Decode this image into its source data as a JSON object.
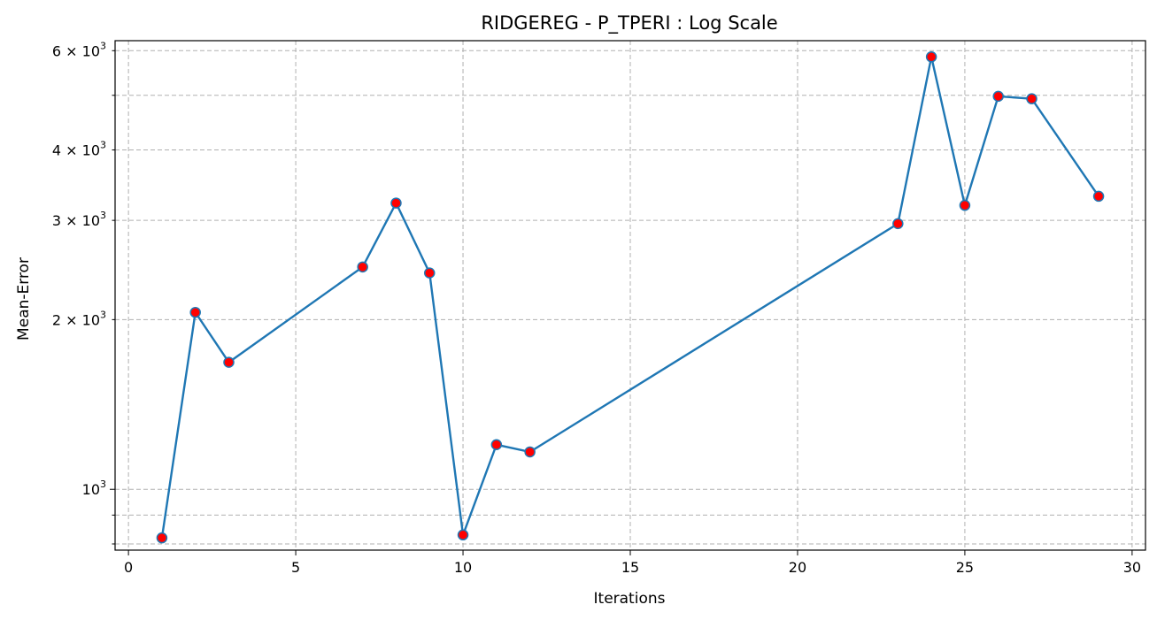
{
  "chart_data": {
    "type": "line",
    "title": "RIDGEREG - P_TPERI : Log Scale",
    "xlabel": "Iterations",
    "ylabel": "Mean-Error",
    "yscale": "log",
    "xlim": [
      -0.4,
      30.4
    ],
    "ylim": [
      780,
      6250
    ],
    "xticks": [
      0,
      5,
      10,
      15,
      20,
      25,
      30
    ],
    "xtick_labels": [
      "0",
      "5",
      "10",
      "15",
      "20",
      "25",
      "30"
    ],
    "yticks_major": [
      1000
    ],
    "yticks_minor": [
      800,
      900,
      2000,
      3000,
      4000,
      5000,
      6000
    ],
    "ytick_labels": [
      {
        "value": 1000,
        "base": "10",
        "exp": "3"
      },
      {
        "value": 2000,
        "base": "2 × 10",
        "exp": "3"
      },
      {
        "value": 3000,
        "base": "3 × 10",
        "exp": "3"
      },
      {
        "value": 4000,
        "base": "4 × 10",
        "exp": "3"
      },
      {
        "value": 6000,
        "base": "6 × 10",
        "exp": "3"
      }
    ],
    "grid": true,
    "series": [
      {
        "x": [
          1,
          2,
          3,
          7,
          8,
          9,
          10,
          11,
          12,
          23,
          24,
          25,
          26,
          27,
          29
        ],
        "y": [
          820,
          2060,
          1680,
          2480,
          3220,
          2420,
          830,
          1200,
          1165,
          2960,
          5850,
          3190,
          4980,
          4930,
          3310
        ],
        "line_color": "#1f77b4",
        "marker_color": "#ff0000"
      }
    ]
  }
}
